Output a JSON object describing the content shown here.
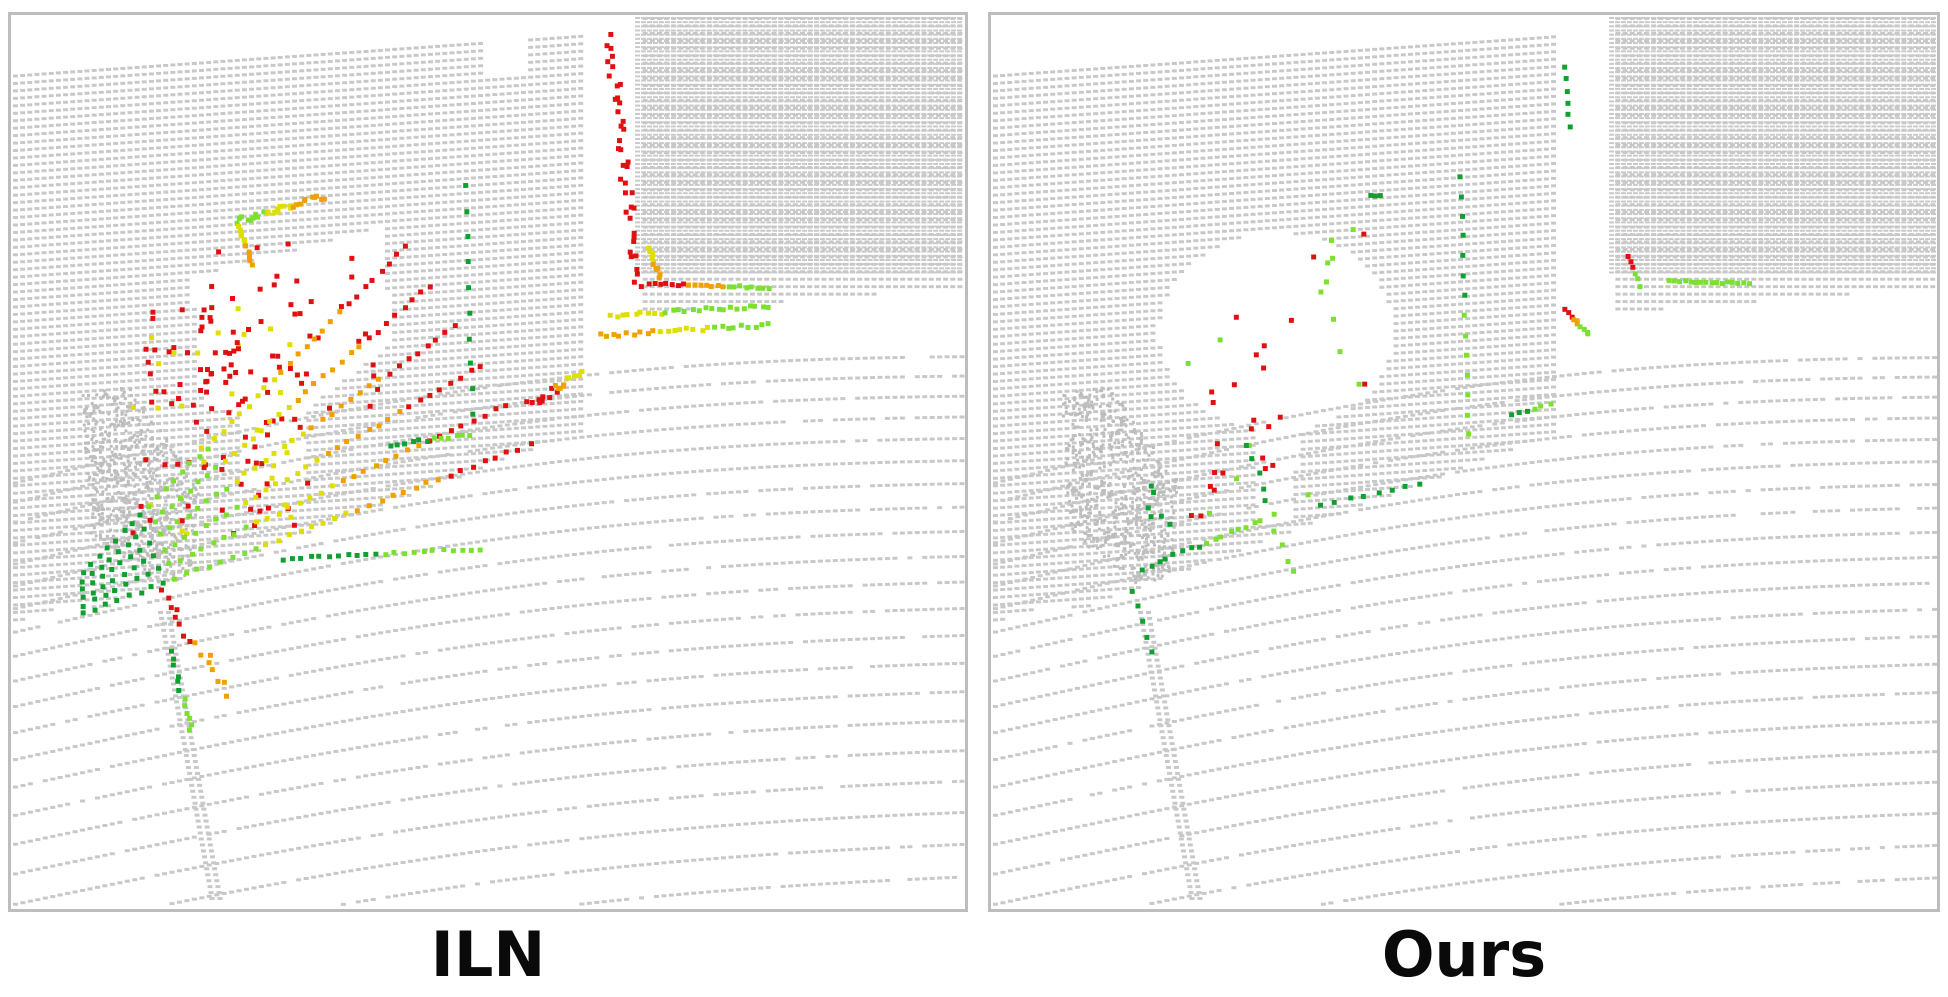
{
  "panels": [
    {
      "caption": "ILN",
      "colors": {
        "point_gray": "#c8c8c8",
        "error_high": "#e01010",
        "error_mid": "#f0a000",
        "error_low_yellow": "#dede00",
        "error_low": "#7be030",
        "error_none": "#10a030",
        "border": "#bdbdbd"
      }
    },
    {
      "caption": "Ours",
      "colors": {
        "point_gray": "#c8c8c8",
        "error_high": "#e01010",
        "error_mid": "#f0a000",
        "error_low_yellow": "#dede00",
        "error_low": "#7be030",
        "error_none": "#10a030",
        "border": "#bdbdbd"
      }
    }
  ]
}
